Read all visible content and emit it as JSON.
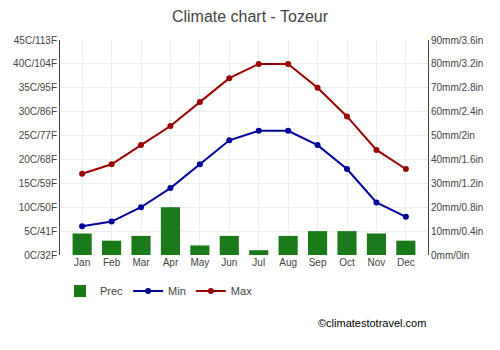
{
  "chart_data": {
    "type": "bar",
    "title": "Climate chart - Tozeur",
    "categories": [
      "Jan",
      "Feb",
      "Mar",
      "Apr",
      "May",
      "Jun",
      "Jul",
      "Aug",
      "Sep",
      "Oct",
      "Nov",
      "Dec"
    ],
    "series": [
      {
        "name": "Prec",
        "type": "bar",
        "axis": "y2",
        "color": "#1a7a1a",
        "values": [
          9,
          6,
          8,
          20,
          4,
          8,
          2,
          8,
          10,
          10,
          9,
          6
        ]
      },
      {
        "name": "Min",
        "type": "line",
        "marker": "circle",
        "color": "#000099",
        "values": [
          6,
          7,
          10,
          14,
          19,
          24,
          26,
          26,
          23,
          18,
          11,
          8
        ]
      },
      {
        "name": "Max",
        "type": "line",
        "marker": "circle",
        "color": "#990000",
        "values": [
          17,
          19,
          23,
          27,
          32,
          37,
          40,
          40,
          35,
          29,
          22,
          18
        ]
      }
    ],
    "ylim": [
      0,
      45
    ],
    "yticks": [
      {
        "value": 0,
        "label": "0C/32F"
      },
      {
        "value": 5,
        "label": "5C/41F"
      },
      {
        "value": 10,
        "label": "10C/50F"
      },
      {
        "value": 15,
        "label": "15C/59F"
      },
      {
        "value": 20,
        "label": "20C/68F"
      },
      {
        "value": 25,
        "label": "25C/77F"
      },
      {
        "value": 30,
        "label": "30C/86F"
      },
      {
        "value": 35,
        "label": "35C/95F"
      },
      {
        "value": 40,
        "label": "40C/104F"
      },
      {
        "value": 45,
        "label": "45C/113F"
      }
    ],
    "y2lim": [
      0,
      90
    ],
    "y2ticks": [
      {
        "value": 0,
        "label": "0mm/0in"
      },
      {
        "value": 10,
        "label": "10mm/0.4in"
      },
      {
        "value": 20,
        "label": "20mm/0.8in"
      },
      {
        "value": 30,
        "label": "30mm/1.2in"
      },
      {
        "value": 40,
        "label": "40mm/1.6in"
      },
      {
        "value": 50,
        "label": "50mm/2in"
      },
      {
        "value": 60,
        "label": "60mm/2.4in"
      },
      {
        "value": 70,
        "label": "70mm/2.8in"
      },
      {
        "value": 80,
        "label": "80mm/3.2in"
      },
      {
        "value": 90,
        "label": "90mm/3.6in"
      }
    ],
    "grid": true,
    "legend": "bottom",
    "annotations": [
      "©climatestotravel.com"
    ]
  }
}
